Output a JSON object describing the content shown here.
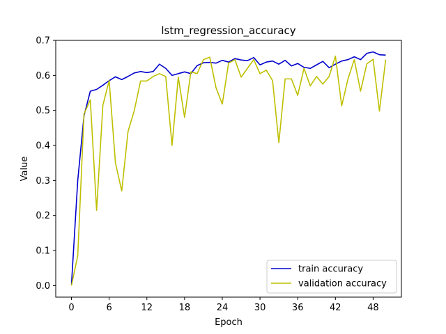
{
  "chart_data": {
    "type": "line",
    "title": "lstm_regression_accuracy",
    "xlabel": "Epoch",
    "ylabel": "Value",
    "xlim": [
      -2.5,
      52.5
    ],
    "ylim": [
      -0.033,
      0.7
    ],
    "xticks": [
      0,
      6,
      12,
      18,
      24,
      30,
      36,
      42,
      48
    ],
    "yticks": [
      0.0,
      0.1,
      0.2,
      0.3,
      0.4,
      0.5,
      0.6,
      0.7
    ],
    "ytick_labels": [
      "0.0",
      "0.1",
      "0.2",
      "0.3",
      "0.4",
      "0.5",
      "0.6",
      "0.7"
    ],
    "grid": false,
    "legend_position": "lower-right",
    "x": [
      0,
      1,
      2,
      3,
      4,
      5,
      6,
      7,
      8,
      9,
      10,
      11,
      12,
      13,
      14,
      15,
      16,
      17,
      18,
      19,
      20,
      21,
      22,
      23,
      24,
      25,
      26,
      27,
      28,
      29,
      30,
      31,
      32,
      33,
      34,
      35,
      36,
      37,
      38,
      39,
      40,
      41,
      42,
      43,
      44,
      45,
      46,
      47,
      48,
      49,
      50
    ],
    "series": [
      {
        "name": "train accuracy",
        "color": "#0000cc",
        "values": [
          0.003,
          0.3,
          0.485,
          0.555,
          0.56,
          0.572,
          0.585,
          0.596,
          0.588,
          0.597,
          0.607,
          0.611,
          0.608,
          0.611,
          0.632,
          0.62,
          0.6,
          0.605,
          0.61,
          0.605,
          0.628,
          0.636,
          0.637,
          0.635,
          0.643,
          0.638,
          0.648,
          0.644,
          0.642,
          0.651,
          0.63,
          0.638,
          0.641,
          0.632,
          0.643,
          0.627,
          0.634,
          0.623,
          0.62,
          0.63,
          0.64,
          0.622,
          0.632,
          0.641,
          0.645,
          0.653,
          0.645,
          0.663,
          0.667,
          0.659,
          0.658
        ]
      },
      {
        "name": "validation accuracy",
        "color": "#bfbf00",
        "values": [
          0.0,
          0.085,
          0.49,
          0.53,
          0.215,
          0.515,
          0.585,
          0.35,
          0.27,
          0.44,
          0.5,
          0.584,
          0.584,
          0.597,
          0.605,
          0.597,
          0.4,
          0.595,
          0.48,
          0.61,
          0.605,
          0.645,
          0.652,
          0.565,
          0.518,
          0.635,
          0.645,
          0.595,
          0.62,
          0.645,
          0.605,
          0.615,
          0.585,
          0.408,
          0.59,
          0.59,
          0.543,
          0.62,
          0.57,
          0.597,
          0.575,
          0.597,
          0.655,
          0.513,
          0.59,
          0.645,
          0.555,
          0.633,
          0.646,
          0.498,
          0.645
        ]
      }
    ]
  }
}
